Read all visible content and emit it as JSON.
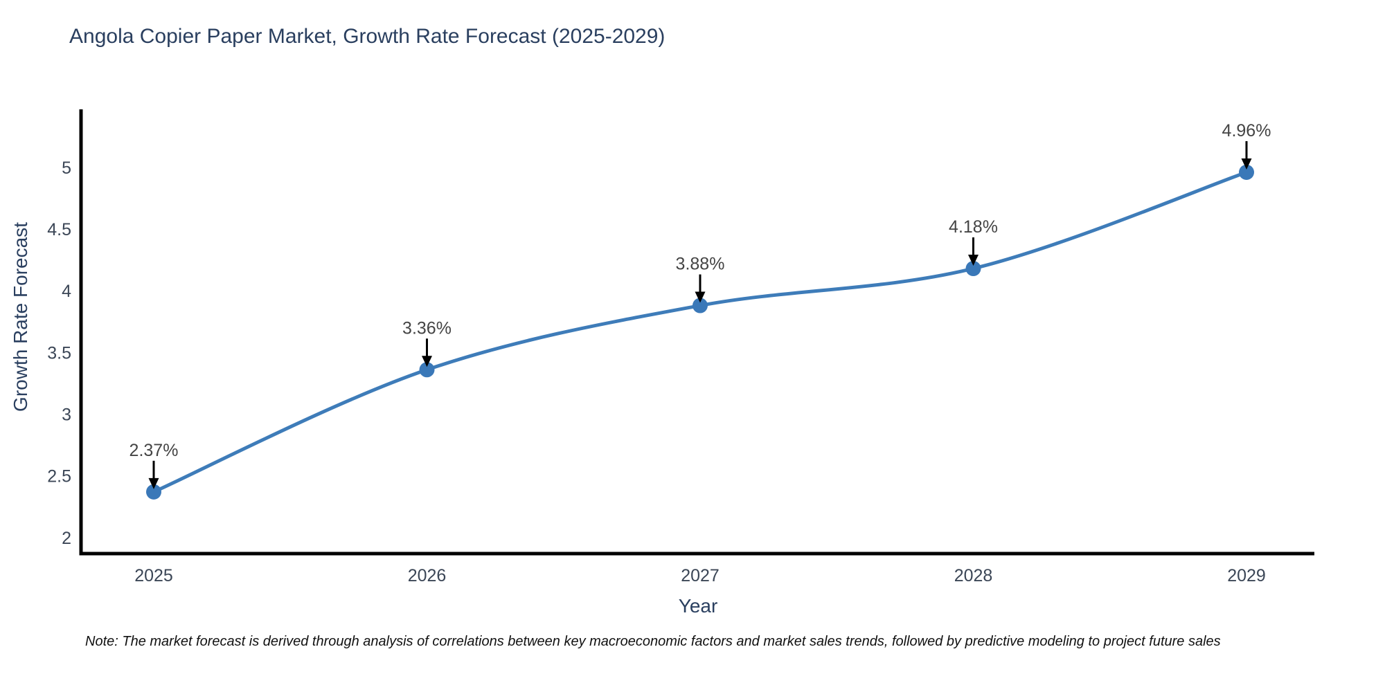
{
  "title": "Angola Copier Paper Market, Growth Rate Forecast (2025-2029)",
  "note": "Note: The market forecast is derived through analysis of correlations between key macroeconomic factors and market sales trends, followed by predictive modeling to project future sales",
  "chart_data": {
    "type": "line",
    "title": "Angola Copier Paper Market, Growth Rate Forecast (2025-2029)",
    "x": [
      "2025",
      "2026",
      "2027",
      "2028",
      "2029"
    ],
    "values": [
      2.37,
      3.36,
      3.88,
      4.18,
      4.96
    ],
    "point_labels": [
      "2.37%",
      "3.36%",
      "3.88%",
      "4.18%",
      "4.96%"
    ],
    "xlabel": "Year",
    "ylabel": "Growth Rate Forecast",
    "ylim": [
      1.87,
      5.47
    ],
    "yticks": [
      2,
      2.5,
      3,
      3.5,
      4,
      4.5,
      5
    ],
    "ytick_labels": [
      "2",
      "2.5",
      "3",
      "3.5",
      "4",
      "4.5",
      "5"
    ],
    "grid": false,
    "legend": "none",
    "line_shape": "spline",
    "line_color": "#3E7CB9",
    "marker_color": "#3A78B8",
    "axis_line_color": "#000000",
    "annotation_arrow_color": "#000000"
  }
}
